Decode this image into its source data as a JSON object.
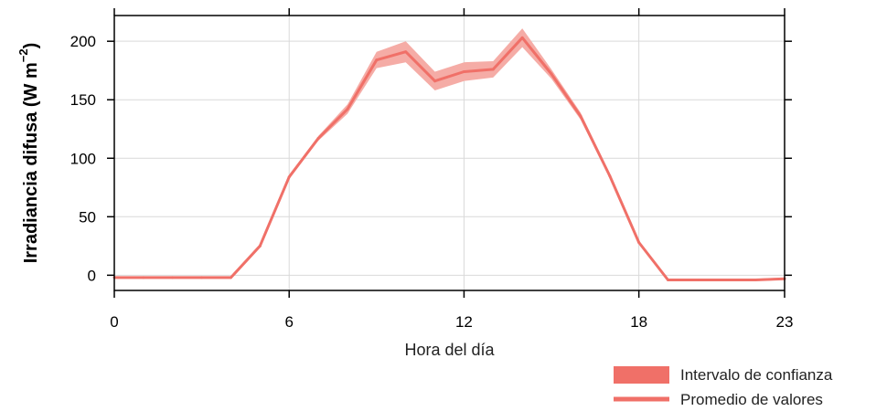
{
  "chart_data": {
    "type": "line",
    "xlabel": "Hora del día",
    "ylabel": {
      "main": "Irradiancia difusa (W m",
      "superscript": "−2",
      "close": ")"
    },
    "xlim": [
      0,
      23
    ],
    "ylim": [
      -13,
      222
    ],
    "x_ticks": [
      0,
      6,
      12,
      18,
      23
    ],
    "y_ticks": [
      0,
      50,
      100,
      150,
      200
    ],
    "grid": true,
    "x": [
      0,
      1,
      2,
      3,
      4,
      5,
      6,
      7,
      8,
      9,
      10,
      11,
      12,
      13,
      14,
      15,
      16,
      17,
      18,
      19,
      20,
      21,
      22,
      23
    ],
    "series": [
      {
        "name": "Promedio de valores",
        "values": [
          -2,
          -2,
          -2,
          -2,
          -2,
          25,
          84,
          117,
          142,
          184,
          191,
          166,
          174,
          176,
          203,
          172,
          136,
          85,
          28,
          -4,
          -4,
          -4,
          -4,
          -3
        ]
      }
    ],
    "ci_lower": [
      -3,
      -3,
      -3,
      -3,
      -3,
      24,
      83,
      115,
      138,
      177,
      182,
      158,
      166,
      169,
      195,
      168,
      133,
      83,
      27,
      -5,
      -5,
      -5,
      -5,
      -4
    ],
    "ci_upper": [
      -1,
      -1,
      -1,
      -1,
      -1,
      26,
      86,
      119,
      146,
      191,
      200,
      174,
      182,
      183,
      211,
      176,
      139,
      87,
      29,
      -3,
      -3,
      -3,
      -3,
      -2
    ],
    "legend": {
      "position": "bottom-right",
      "items": [
        {
          "label": "Intervalo de confianza",
          "kind": "band"
        },
        {
          "label": "Promedio de valores",
          "kind": "line"
        }
      ]
    },
    "colors": {
      "line": "#f07068",
      "band": "#f5aca6",
      "legend_band": "#f07068",
      "grid": "#d9d9d9",
      "axis": "#000000"
    }
  }
}
